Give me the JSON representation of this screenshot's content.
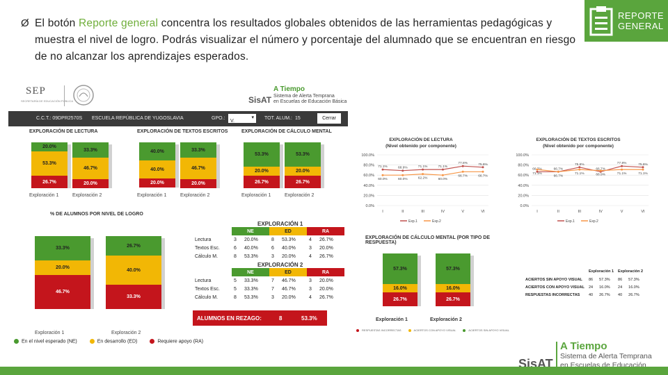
{
  "intro": {
    "bullet": "Ø",
    "before": "El botón ",
    "highlight": "Reporte general",
    "after": " concentra los resultados globales obtenidos de las herramientas pedagógicas y muestra el nivel de logro. Podrás visualizar el número y porcentaje del alumnado que se encuentran en riesgo de no alcanzar los aprendizajes esperados."
  },
  "badge": {
    "line1": "REPORTE",
    "line2": "GENERAL",
    "icon": "clipboard-list-icon"
  },
  "header": {
    "sep": "SEP",
    "sep_sub": "SECRETARÍA DE EDUCACIÓN PÚBLICA",
    "brand": "SisAT",
    "brand_title": "A Tiempo",
    "brand_sub1": "Sistema de Alerta Temprana",
    "brand_sub2": "en Escuelas de Educación Básica"
  },
  "topbar": {
    "cct": "C.C.T.: 09DPR2570S",
    "school": "ESCUELA REPÚBLICA DE YUGOSLAVIA",
    "grupo_label": "GPO.:",
    "grupo_value": "V.",
    "total_label": "TOT. ALUM.:",
    "total_value": "15",
    "close": "Cerrar"
  },
  "mini": [
    {
      "title": "EXPLORACIÓN DE LECTURA",
      "cols": [
        [
          "20.0%",
          "53.3%",
          "26.7%"
        ],
        [
          "33.3%",
          "46.7%",
          "20.0%"
        ]
      ],
      "labels": [
        "Exploración 1",
        "Exploración 2"
      ]
    },
    {
      "title": "EXPLORACIÓN DE TEXTOS ESCRITOS",
      "cols": [
        [
          "40.0%",
          "40.0%",
          "20.0%"
        ],
        [
          "33.3%",
          "46.7%",
          "20.0%"
        ]
      ],
      "labels": [
        "Exploración 1",
        "Exploración 2"
      ]
    },
    {
      "title": "EXPLORACIÓN DE CÁLCULO MENTAL",
      "cols": [
        [
          "53.3%",
          "20.0%",
          "26.7%"
        ],
        [
          "53.3%",
          "20.0%",
          "26.7%"
        ]
      ],
      "labels": [
        "Exploración 1",
        "Exploración 2"
      ]
    }
  ],
  "big": {
    "title": "% DE ALUMNOS POR NIVEL DE LOGRO",
    "cols": [
      [
        "33.3%",
        "20.0%",
        "46.7%"
      ],
      [
        "26.7%",
        "40.0%",
        "33.3%"
      ]
    ],
    "labels": [
      "Exploración 1",
      "Exploración 2"
    ]
  },
  "legend": {
    "ne": "En el nivel esperado (NE)",
    "ed": "En desarrollo (ED)",
    "ra": "Requiere apoyo (RA)"
  },
  "exp1": {
    "title": "EXPLORACIÓN 1",
    "h": [
      "NE",
      "ED",
      "RA"
    ],
    "rows": [
      [
        "Lectura",
        "3",
        "20.0%",
        "8",
        "53.3%",
        "4",
        "26.7%"
      ],
      [
        "Textos Esc.",
        "6",
        "40.0%",
        "6",
        "40.0%",
        "3",
        "20.0%"
      ],
      [
        "Cálculo M.",
        "8",
        "53.3%",
        "3",
        "20.0%",
        "4",
        "26.7%"
      ]
    ]
  },
  "exp2": {
    "title": "EXPLORACIÓN 2",
    "h": [
      "NE",
      "ED",
      "RA"
    ],
    "rows": [
      [
        "Lectura",
        "5",
        "33.3%",
        "7",
        "46.7%",
        "3",
        "20.0%"
      ],
      [
        "Textos Esc.",
        "5",
        "33.3%",
        "7",
        "46.7%",
        "3",
        "20.0%"
      ],
      [
        "Cálculo M.",
        "8",
        "53.3%",
        "3",
        "20.0%",
        "4",
        "26.7%"
      ]
    ]
  },
  "rezago": {
    "label": "ALUMNOS EN REZAGO:",
    "count": "8",
    "pct": "53.3%"
  },
  "line1": {
    "title": "EXPLORACIÓN DE LECTURA",
    "subtitle": "(Nivel obtenido por componente)",
    "yticks": [
      "100.0%",
      "80.0%",
      "60.0%",
      "40.0%",
      "20.0%",
      "0.0%"
    ],
    "xticks": [
      "I",
      "II",
      "III",
      "IV",
      "V",
      "VI"
    ],
    "series": [
      {
        "name": "Exp.1",
        "values": [
          71.1,
          68.9,
          71.1,
          71.1,
          77.8,
          75.6
        ]
      },
      {
        "name": "Exp.2",
        "values": [
          60.0,
          60.0,
          62.2,
          60.0,
          66.7,
          66.7
        ]
      }
    ],
    "labels1": [
      "71.1%",
      "68.9%",
      "71.1%",
      "71.1%",
      "77.8%",
      "75.6%"
    ],
    "labels2": [
      "60.0%",
      "60.0%",
      "62.2%",
      "60.0%",
      "66.7%",
      "66.7%"
    ]
  },
  "line2": {
    "title": "EXPLORACIÓN DE TEXTOS ESCRITOS",
    "subtitle": "(Nivel obtenido por componente)",
    "yticks": [
      "100.0%",
      "80.0%",
      "60.0%",
      "40.0%",
      "20.0%",
      "0.0%"
    ],
    "xticks": [
      "I",
      "II",
      "III",
      "IV",
      "V",
      "VI"
    ],
    "series": [
      {
        "name": "Exp.1",
        "values": [
          66.7,
          66.7,
          75.6,
          66.7,
          77.8,
          75.6
        ]
      },
      {
        "name": "Exp.2",
        "values": [
          71.1,
          66.7,
          71.1,
          68.9,
          71.1,
          71.1
        ]
      }
    ],
    "labels1": [
      "66.7%",
      "66.7%",
      "75.6%",
      "66.7%",
      "77.8%",
      "75.6%"
    ],
    "labels2": [
      "71.1%",
      "66.7%",
      "71.1%",
      "68.9%",
      "71.1%",
      "71.1%"
    ]
  },
  "cm": {
    "title": "EXPLORACIÓN DE CÁLCULO MENTAL (POR TIPO DE RESPUESTA)",
    "cols": [
      [
        "57.3%",
        "16.0%",
        "26.7%"
      ],
      [
        "57.3%",
        "16.0%",
        "26.7%"
      ]
    ],
    "labels": [
      "Exploración 1",
      "Exploración 2"
    ],
    "table_head": [
      "Exploración 1",
      "Exploración 2"
    ],
    "rows": [
      [
        "ACIERTOS SIN APOYO VISUAL",
        "86",
        "57.3%",
        "86",
        "57.3%"
      ],
      [
        "ACIERTOS CON APOYO VISUAL",
        "24",
        "16.0%",
        "24",
        "16.0%"
      ],
      [
        "RESPUESTAS INCORRECTAS",
        "40",
        "26.7%",
        "40",
        "26.7%"
      ]
    ],
    "legend": [
      "RESPUESTAS INCORRECTAS",
      "ACIERTOS CON APOYO VISUAL",
      "ACIERTOS SIN APOYO VISUAL"
    ]
  },
  "chart_data": [
    {
      "type": "line",
      "title": "EXPLORACIÓN DE LECTURA (Nivel obtenido por componente)",
      "x": [
        "I",
        "II",
        "III",
        "IV",
        "V",
        "VI"
      ],
      "series": [
        {
          "name": "Exp.1",
          "values": [
            71.1,
            68.9,
            71.1,
            71.1,
            77.8,
            75.6
          ]
        },
        {
          "name": "Exp.2",
          "values": [
            60.0,
            60.0,
            62.2,
            60.0,
            66.7,
            66.7
          ]
        }
      ],
      "ylim": [
        0,
        100
      ]
    },
    {
      "type": "line",
      "title": "EXPLORACIÓN DE TEXTOS ESCRITOS (Nivel obtenido por componente)",
      "x": [
        "I",
        "II",
        "III",
        "IV",
        "V",
        "VI"
      ],
      "series": [
        {
          "name": "Exp.1",
          "values": [
            66.7,
            66.7,
            75.6,
            66.7,
            77.8,
            75.6
          ]
        },
        {
          "name": "Exp.2",
          "values": [
            71.1,
            66.7,
            71.1,
            68.9,
            71.1,
            71.1
          ]
        }
      ],
      "ylim": [
        0,
        100
      ]
    }
  ],
  "colors": {
    "green": "#4a9a2f",
    "yellow": "#f2b705",
    "red": "#c4151c",
    "exp1": "#c0504d",
    "exp2": "#f79646"
  },
  "footer": {
    "brand_title": "A Tiempo",
    "brand": "SisAT",
    "sub1": "Sistema de Alerta Temprana",
    "sub2": "en Escuelas de Educación Básica"
  }
}
